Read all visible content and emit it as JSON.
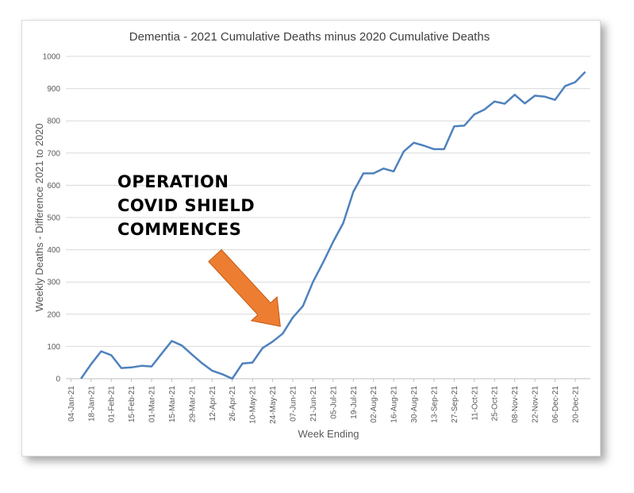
{
  "chart_data": {
    "type": "line",
    "title": "Dementia - 2021 Cumulative Deaths minus 2020 Cumulative Deaths",
    "xlabel": "Week Ending",
    "ylabel": "Weekly Deaths - Difference 2021 to 2020",
    "ylim": [
      0,
      1000
    ],
    "yticks": [
      0,
      100,
      200,
      300,
      400,
      500,
      600,
      700,
      800,
      900,
      1000
    ],
    "grid": true,
    "legend": "none",
    "categories": [
      "04-Jan-21",
      "11-Jan-21",
      "18-Jan-21",
      "25-Jan-21",
      "01-Feb-21",
      "08-Feb-21",
      "15-Feb-21",
      "22-Feb-21",
      "01-Mar-21",
      "08-Mar-21",
      "15-Mar-21",
      "22-Mar-21",
      "29-Mar-21",
      "05-Apr-21",
      "12-Apr-21",
      "19-Apr-21",
      "26-Apr-21",
      "03-May-21",
      "10-May-21",
      "17-May-21",
      "24-May-21",
      "31-May-21",
      "07-Jun-21",
      "14-Jun-21",
      "21-Jun-21",
      "28-Jun-21",
      "05-Jul-21",
      "12-Jul-21",
      "19-Jul-21",
      "26-Jul-21",
      "02-Aug-21",
      "09-Aug-21",
      "16-Aug-21",
      "23-Aug-21",
      "30-Aug-21",
      "06-Sep-21",
      "13-Sep-21",
      "20-Sep-21",
      "27-Sep-21",
      "04-Oct-21",
      "11-Oct-21",
      "18-Oct-21",
      "25-Oct-21",
      "01-Nov-21",
      "08-Nov-21",
      "15-Nov-21",
      "22-Nov-21",
      "29-Nov-21",
      "06-Dec-21",
      "13-Dec-21",
      "20-Dec-21",
      "27-Dec-21"
    ],
    "visible_tick_labels": [
      "04-Jan-21",
      "18-Jan-21",
      "01-Feb-21",
      "15-Feb-21",
      "01-Mar-21",
      "15-Mar-21",
      "29-Mar-21",
      "12-Apr-21",
      "26-Apr-21",
      "10-May-21",
      "24-May-21",
      "07-Jun-21",
      "21-Jun-21",
      "05-Jul-21",
      "19-Jul-21",
      "02-Aug-21",
      "16-Aug-21",
      "30-Aug-21",
      "13-Sep-21",
      "27-Sep-21",
      "11-Oct-21",
      "25-Oct-21",
      "08-Nov-21",
      "22-Nov-21",
      "06-Dec-21",
      "20-Dec-21"
    ],
    "series": [
      {
        "values": [
          null,
          0,
          45,
          85,
          73,
          33,
          35,
          40,
          38,
          78,
          117,
          103,
          75,
          48,
          25,
          14,
          0,
          47,
          50,
          95,
          115,
          140,
          190,
          225,
          300,
          360,
          425,
          483,
          580,
          637,
          637,
          652,
          643,
          705,
          732,
          723,
          712,
          712,
          783,
          785,
          820,
          835,
          860,
          853,
          881,
          854,
          878,
          875,
          865,
          908,
          920,
          952
        ],
        "color": "#4f81bd"
      }
    ],
    "annotations": [
      {
        "lines": [
          "OPERATION",
          "COVID SHIELD",
          "COMMENCES"
        ],
        "arrow_color": "#ed7d31",
        "arrow_target": "31-May-21"
      }
    ]
  }
}
